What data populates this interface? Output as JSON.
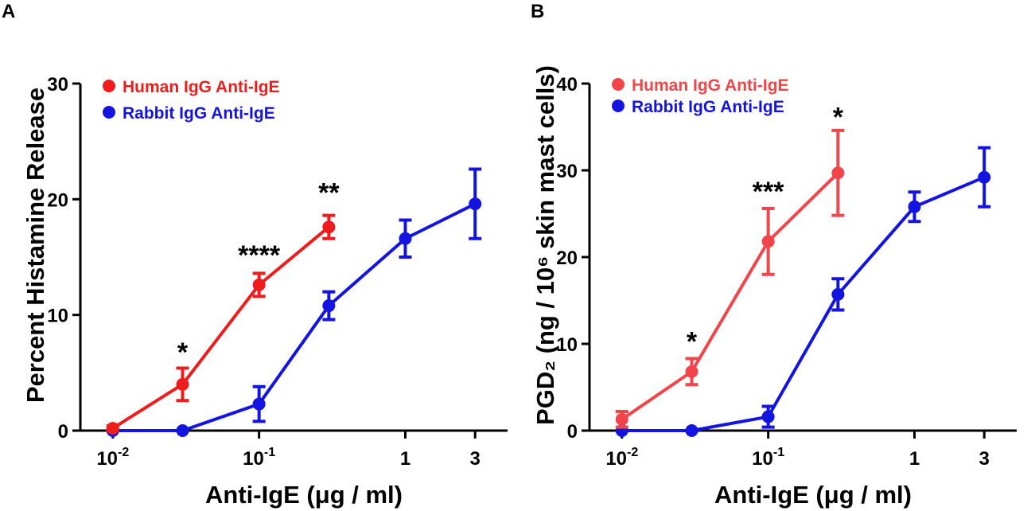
{
  "figure": {
    "panels": [
      {
        "letter": "A",
        "ylabel": "Percent  Histamine  Release",
        "xlabel": "Anti-IgE (μg / ml)"
      },
      {
        "letter": "B",
        "ylabel": "PGD₂ (ng / 10⁶ skin mast cells)",
        "xlabel": "Anti-IgE (μg / ml)"
      }
    ]
  },
  "colors": {
    "human_a": "#ee1c1c",
    "human_b": "#f0454a",
    "rabbit": "#1414e0",
    "axis": "#000000"
  },
  "chart_data": [
    {
      "type": "line",
      "panel": "A",
      "title": "",
      "xlabel": "Anti-IgE (μg / ml)",
      "ylabel": "Percent  Histamine  Release",
      "x_scale": "log",
      "x_tick_values": [
        0.01,
        0.1,
        1,
        3
      ],
      "x_tick_labels": [
        {
          "base": "10",
          "sup": "-2"
        },
        {
          "base": "10",
          "sup": "-1"
        },
        {
          "base": "1",
          "sup": ""
        },
        {
          "base": "3",
          "sup": ""
        }
      ],
      "xlim": [
        0.006,
        5
      ],
      "ylim": [
        0,
        30
      ],
      "y_ticks": [
        0,
        10,
        20,
        30
      ],
      "legend_position": "top-left",
      "series": [
        {
          "name": "Human IgG Anti-IgE",
          "color": "#ee1c1c",
          "x": [
            0.01,
            0.03,
            0.1,
            0.3
          ],
          "y": [
            0.2,
            4.0,
            12.6,
            17.6
          ],
          "err": [
            0.2,
            1.4,
            1.0,
            1.0
          ]
        },
        {
          "name": "Rabbit IgG Anti-IgE",
          "color": "#1414e0",
          "x": [
            0.01,
            0.03,
            0.1,
            0.3,
            1,
            3
          ],
          "y": [
            0,
            0,
            2.3,
            10.8,
            16.6,
            19.6
          ],
          "err": [
            0,
            0,
            1.5,
            1.2,
            1.6,
            3.0
          ]
        }
      ],
      "annotations": [
        {
          "text": "*",
          "x": 0.03,
          "y": 6.8
        },
        {
          "text": "****",
          "x": 0.1,
          "y": 15.2
        },
        {
          "text": "**",
          "x": 0.3,
          "y": 20.6
        }
      ]
    },
    {
      "type": "line",
      "panel": "B",
      "title": "",
      "xlabel": "Anti-IgE (μg / ml)",
      "ylabel": "PGD₂ (ng / 10⁶ skin mast cells)",
      "x_scale": "log",
      "x_tick_values": [
        0.01,
        0.1,
        1,
        3
      ],
      "x_tick_labels": [
        {
          "base": "10",
          "sup": "-2"
        },
        {
          "base": "10",
          "sup": "-1"
        },
        {
          "base": "1",
          "sup": ""
        },
        {
          "base": "3",
          "sup": ""
        }
      ],
      "xlim": [
        0.006,
        5
      ],
      "ylim": [
        0,
        40
      ],
      "y_ticks": [
        0,
        10,
        20,
        30,
        40
      ],
      "legend_position": "top-left",
      "series": [
        {
          "name": "Human IgG Anti-IgE",
          "color": "#f0454a",
          "x": [
            0.01,
            0.03,
            0.1,
            0.3
          ],
          "y": [
            1.3,
            6.8,
            21.8,
            29.7
          ],
          "err": [
            0.9,
            1.5,
            3.8,
            4.9
          ]
        },
        {
          "name": "Rabbit IgG Anti-IgE",
          "color": "#1414e0",
          "x": [
            0.01,
            0.03,
            0.1,
            0.3,
            1,
            3
          ],
          "y": [
            0,
            0,
            1.6,
            15.7,
            25.8,
            29.2
          ],
          "err": [
            0,
            0,
            1.2,
            1.8,
            1.7,
            3.4
          ]
        }
      ],
      "annotations": [
        {
          "text": "*",
          "x": 0.03,
          "y": 10.3
        },
        {
          "text": "***",
          "x": 0.1,
          "y": 27.6
        },
        {
          "text": "*",
          "x": 0.3,
          "y": 36.2
        }
      ]
    }
  ]
}
